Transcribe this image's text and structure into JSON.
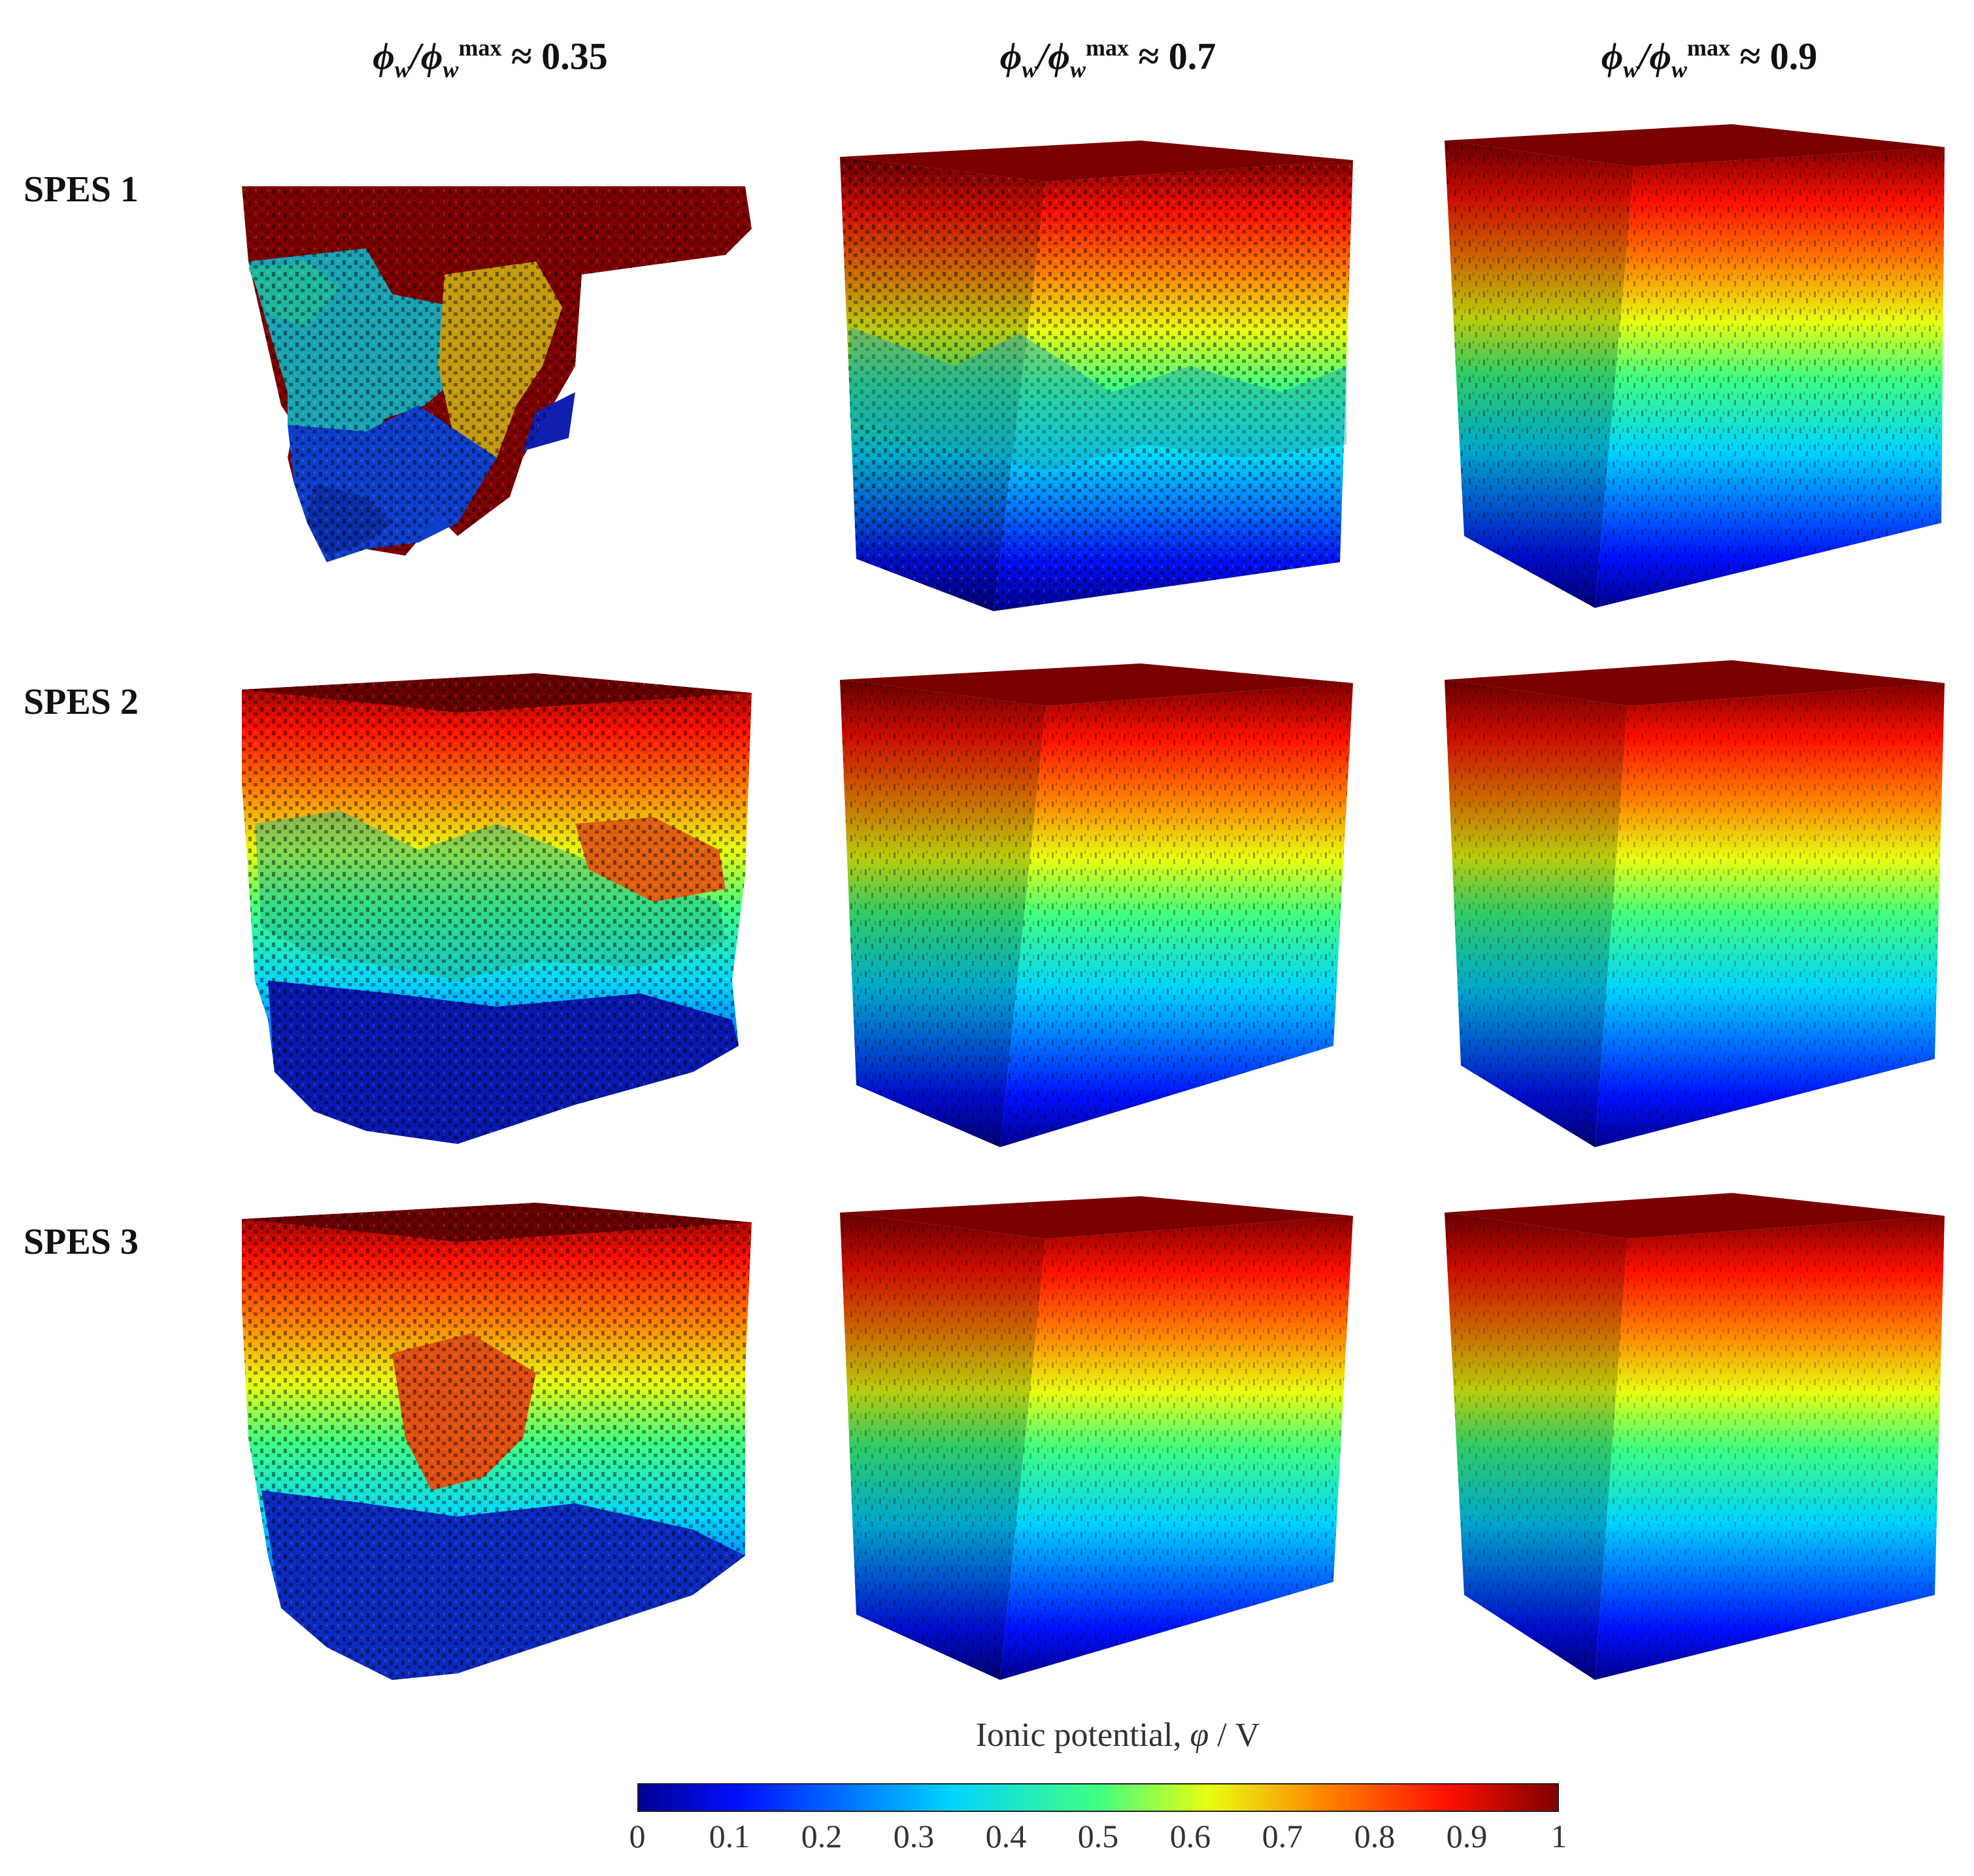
{
  "column_headers": [
    {
      "prefix": "ϕ",
      "sub": "w",
      "slash": "/ϕ",
      "sub2": "w",
      "sup": "max",
      "approx": "≈ 0.35"
    },
    {
      "prefix": "ϕ",
      "sub": "w",
      "slash": "/ϕ",
      "sub2": "w",
      "sup": "max",
      "approx": "≈ 0.7"
    },
    {
      "prefix": "ϕ",
      "sub": "w",
      "slash": "/ϕ",
      "sub2": "w",
      "sup": "max",
      "approx": "≈ 0.9"
    }
  ],
  "row_labels": [
    "SPES 1",
    "SPES 2",
    "SPES 3"
  ],
  "colorbar": {
    "title_text": "Ionic potential, ",
    "title_symbol": "φ",
    "title_unit": " / V",
    "ticks": [
      "0",
      "0.1",
      "0.2",
      "0.3",
      "0.4",
      "0.5",
      "0.6",
      "0.7",
      "0.8",
      "0.9",
      "1"
    ],
    "range": [
      0,
      1
    ],
    "colormap": "jet"
  },
  "panels": [
    {
      "row": "SPES 1",
      "water_fraction_ratio": 0.35,
      "structure": "fragmented"
    },
    {
      "row": "SPES 1",
      "water_fraction_ratio": 0.7,
      "structure": "porous"
    },
    {
      "row": "SPES 1",
      "water_fraction_ratio": 0.9,
      "structure": "dense"
    },
    {
      "row": "SPES 2",
      "water_fraction_ratio": 0.35,
      "structure": "porous"
    },
    {
      "row": "SPES 2",
      "water_fraction_ratio": 0.7,
      "structure": "dense"
    },
    {
      "row": "SPES 2",
      "water_fraction_ratio": 0.9,
      "structure": "solid"
    },
    {
      "row": "SPES 3",
      "water_fraction_ratio": 0.35,
      "structure": "porous"
    },
    {
      "row": "SPES 3",
      "water_fraction_ratio": 0.7,
      "structure": "solid"
    },
    {
      "row": "SPES 3",
      "water_fraction_ratio": 0.9,
      "structure": "solid"
    }
  ]
}
